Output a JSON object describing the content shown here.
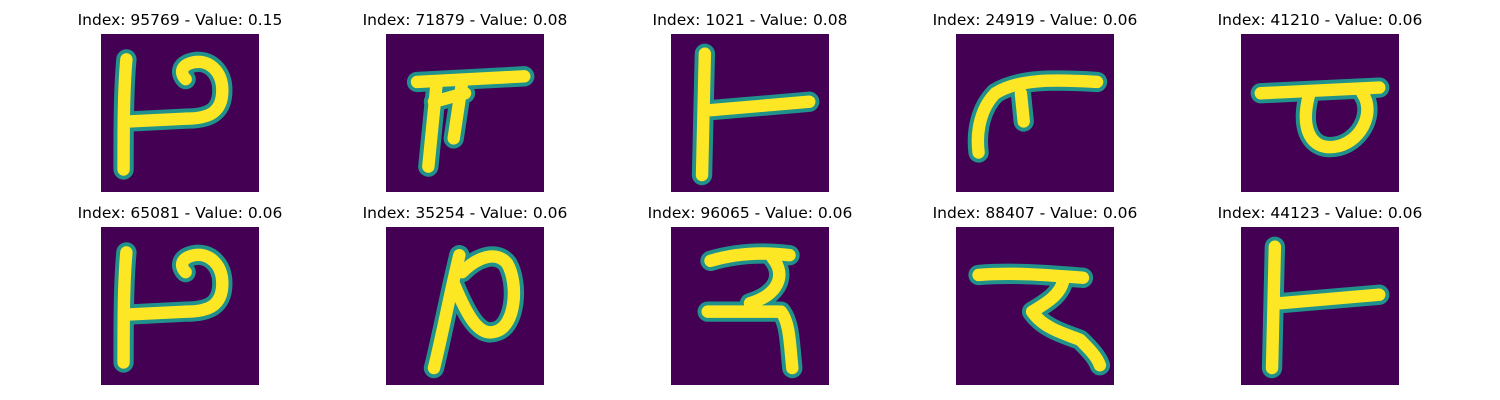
{
  "figure": {
    "background_color": "#440154",
    "stroke_color_core": "#fde725",
    "stroke_color_edge": "#21918c",
    "colormap": "viridis",
    "rows": 2,
    "columns": 5,
    "panels": [
      {
        "title": "Index: 95769 - Value: 0.15",
        "index": 95769,
        "value": 0.15,
        "glyph": "hook-stem-with-right-loop"
      },
      {
        "title": "Index: 71879 - Value: 0.08",
        "index": 71879,
        "value": 0.08,
        "glyph": "bar-with-two-legs"
      },
      {
        "title": "Index: 1021 - Value: 0.08",
        "index": 1021,
        "value": 0.08,
        "glyph": "stem-with-right-arm"
      },
      {
        "title": "Index: 24919 - Value: 0.06",
        "index": 24919,
        "value": 0.06,
        "glyph": "curved-bar-with-tick"
      },
      {
        "title": "Index: 41210 - Value: 0.06",
        "index": 41210,
        "value": 0.06,
        "glyph": "bar-with-loop"
      },
      {
        "title": "Index: 65081 - Value: 0.06",
        "index": 65081,
        "value": 0.06,
        "glyph": "hook-stem-with-right-loop"
      },
      {
        "title": "Index: 35254 - Value: 0.06",
        "index": 35254,
        "value": 0.06,
        "glyph": "ra-curve"
      },
      {
        "title": "Index: 96065 - Value: 0.06",
        "index": 96065,
        "value": 0.06,
        "glyph": "bar-with-zigzag"
      },
      {
        "title": "Index: 88407 - Value: 0.06",
        "index": 88407,
        "value": 0.06,
        "glyph": "bar-with-zigzag-tail"
      },
      {
        "title": "Index: 44123 - Value: 0.06",
        "index": 44123,
        "value": 0.06,
        "glyph": "stem-with-right-arm"
      }
    ]
  }
}
